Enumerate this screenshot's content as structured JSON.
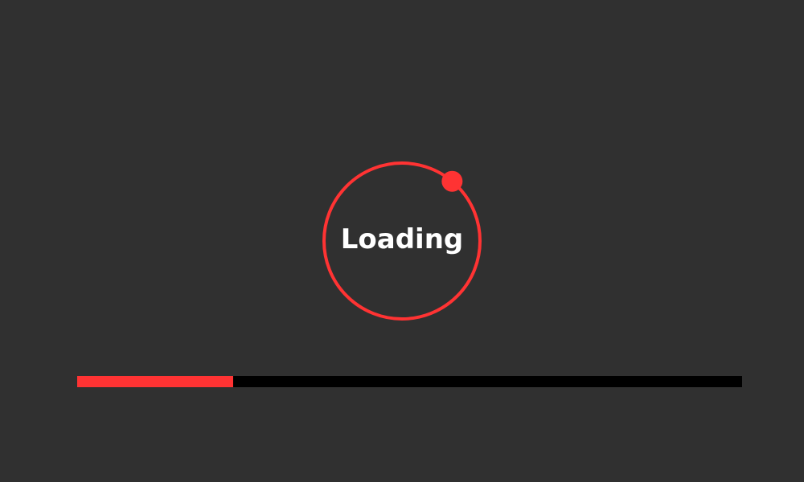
{
  "colors": {
    "background": "#303030",
    "accent": "#ff3333",
    "track": "#000000",
    "text": "#ffffff"
  },
  "loader": {
    "label": "Loading",
    "spinner_angle_deg": 40
  },
  "progress": {
    "fraction": 0.235
  }
}
